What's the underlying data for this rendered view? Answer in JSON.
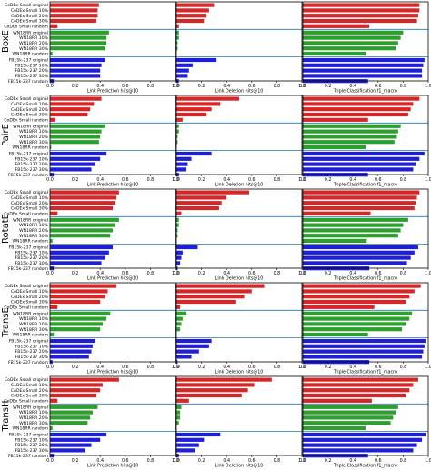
{
  "chart_data": {
    "type": "bar",
    "orientation": "horizontal",
    "row_labels": [
      "BoxE",
      "PairE",
      "RotatE",
      "TransE",
      "TransH"
    ],
    "categories": [
      "CoDEx Small original",
      "CoDEx Small  10%",
      "CoDEx Small  20%",
      "CoDEx Small  30%",
      "CoDEx Small random",
      "WN18RR original",
      "WN18RR  10%",
      "WN18RR  20%",
      "WN18RR  30%",
      "WN18RR  random",
      "FB15k-237 original",
      "FB15k-237  10%",
      "FB15k-237  20%",
      "FB15k-237  30%",
      "FB15k-237  random"
    ],
    "groups": [
      {
        "name": "CoDEx Small",
        "color": "#d62728"
      },
      {
        "name": "WN18RR",
        "color": "#2ca02c"
      },
      {
        "name": "FB15k-237",
        "color": "#1f1fd6"
      }
    ],
    "column_xlabels": [
      "Link Prediction hits@10",
      "Link Deletion hits@10",
      "Triple Classification f1_macro"
    ],
    "xlim": [
      0.0,
      1.0
    ],
    "xticks": [
      "0.0",
      "0.2",
      "0.4",
      "0.6",
      "0.8",
      "1.0"
    ],
    "grid": false,
    "panels": [
      {
        "model": "BoxE",
        "metric": "Link Prediction hits@10",
        "values": [
          0.39,
          0.38,
          0.38,
          0.37,
          0.06,
          0.47,
          0.45,
          0.45,
          0.44,
          0.02,
          0.44,
          0.41,
          0.4,
          0.4,
          0.03
        ]
      },
      {
        "model": "BoxE",
        "metric": "Link Deletion hits@10",
        "values": [
          0.3,
          0.26,
          0.24,
          0.22,
          0.02,
          0.02,
          0.02,
          0.01,
          0.01,
          0.0,
          0.32,
          0.13,
          0.1,
          0.09,
          0.02
        ]
      },
      {
        "model": "BoxE",
        "metric": "Triple Classification f1_macro",
        "values": [
          0.93,
          0.93,
          0.92,
          0.91,
          0.53,
          0.8,
          0.78,
          0.76,
          0.74,
          0.5,
          0.97,
          0.96,
          0.95,
          0.95,
          0.52
        ]
      },
      {
        "model": "PairE",
        "metric": "Link Prediction hits@10",
        "values": [
          0.41,
          0.35,
          0.32,
          0.3,
          0.04,
          0.44,
          0.41,
          0.4,
          0.39,
          0.01,
          0.45,
          0.4,
          0.36,
          0.33,
          0.03
        ]
      },
      {
        "model": "PairE",
        "metric": "Link Deletion hits@10",
        "values": [
          0.5,
          0.35,
          0.28,
          0.24,
          0.05,
          0.02,
          0.02,
          0.01,
          0.01,
          0.0,
          0.28,
          0.12,
          0.09,
          0.08,
          0.02
        ]
      },
      {
        "model": "PairE",
        "metric": "Triple Classification f1_macro",
        "values": [
          0.93,
          0.88,
          0.86,
          0.84,
          0.52,
          0.78,
          0.76,
          0.75,
          0.73,
          0.5,
          0.97,
          0.93,
          0.9,
          0.88,
          0.52
        ]
      },
      {
        "model": "RotatE",
        "metric": "Link Prediction hits@10",
        "values": [
          0.55,
          0.53,
          0.52,
          0.5,
          0.06,
          0.55,
          0.52,
          0.5,
          0.48,
          0.02,
          0.5,
          0.47,
          0.44,
          0.41,
          0.03
        ]
      },
      {
        "model": "RotatE",
        "metric": "Link Deletion hits@10",
        "values": [
          0.58,
          0.4,
          0.36,
          0.34,
          0.04,
          0.02,
          0.02,
          0.01,
          0.01,
          0.0,
          0.17,
          0.05,
          0.04,
          0.03,
          0.01
        ]
      },
      {
        "model": "RotatE",
        "metric": "Triple Classification f1_macro",
        "values": [
          0.93,
          0.91,
          0.9,
          0.89,
          0.54,
          0.84,
          0.8,
          0.78,
          0.76,
          0.51,
          0.92,
          0.89,
          0.86,
          0.83,
          0.53
        ]
      },
      {
        "model": "TransE",
        "metric": "Link Prediction hits@10",
        "values": [
          0.53,
          0.46,
          0.44,
          0.4,
          0.06,
          0.48,
          0.45,
          0.42,
          0.4,
          0.03,
          0.36,
          0.34,
          0.33,
          0.31,
          0.02
        ]
      },
      {
        "model": "TransE",
        "metric": "Link Deletion hits@10",
        "values": [
          0.7,
          0.6,
          0.54,
          0.47,
          0.03,
          0.08,
          0.05,
          0.04,
          0.03,
          0.0,
          0.28,
          0.26,
          0.18,
          0.12,
          0.01
        ]
      },
      {
        "model": "TransE",
        "metric": "Triple Classification f1_macro",
        "values": [
          0.94,
          0.89,
          0.85,
          0.82,
          0.57,
          0.87,
          0.85,
          0.82,
          0.79,
          0.52,
          0.98,
          0.97,
          0.96,
          0.95,
          0.53
        ]
      },
      {
        "model": "TransH",
        "metric": "Link Prediction hits@10",
        "values": [
          0.55,
          0.42,
          0.4,
          0.37,
          0.06,
          0.38,
          0.34,
          0.32,
          0.3,
          0.02,
          0.45,
          0.4,
          0.33,
          0.28,
          0.03
        ]
      },
      {
        "model": "TransH",
        "metric": "Link Deletion hits@10",
        "values": [
          0.76,
          0.62,
          0.57,
          0.52,
          0.1,
          0.04,
          0.03,
          0.03,
          0.02,
          0.0,
          0.35,
          0.22,
          0.18,
          0.15,
          0.02
        ]
      },
      {
        "model": "TransH",
        "metric": "Triple Classification f1_macro",
        "values": [
          0.92,
          0.88,
          0.85,
          0.82,
          0.55,
          0.76,
          0.74,
          0.72,
          0.7,
          0.5,
          0.98,
          0.95,
          0.91,
          0.88,
          0.52
        ]
      }
    ]
  }
}
